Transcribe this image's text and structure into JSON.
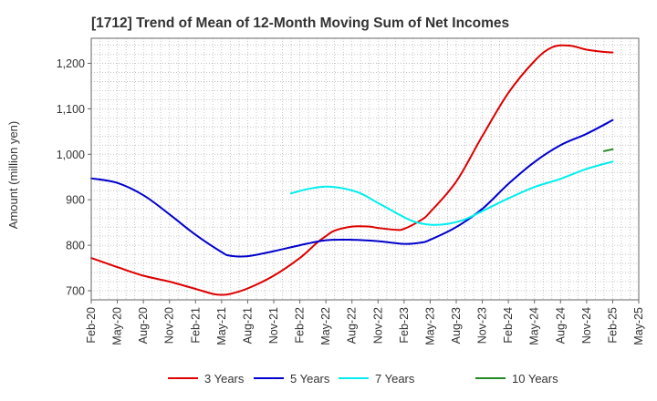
{
  "chart_data": {
    "type": "line",
    "title": "[1712]  Trend of Mean of 12-Month Moving Sum of Net Incomes",
    "ylabel": "Amount (million yen)",
    "xlabel": "",
    "ylim": [
      680,
      1255
    ],
    "yticks": [
      700,
      800,
      900,
      1000,
      1100,
      1200
    ],
    "ytick_labels": [
      "700",
      "800",
      "900",
      "1,000",
      "1,100",
      "1,200"
    ],
    "xlim": [
      "2020-02",
      "2025-05"
    ],
    "xtick_labels": [
      "Feb-20",
      "May-20",
      "Aug-20",
      "Nov-20",
      "Feb-21",
      "May-21",
      "Aug-21",
      "Nov-21",
      "Feb-22",
      "May-22",
      "Aug-22",
      "Nov-22",
      "Feb-23",
      "May-23",
      "Aug-23",
      "Nov-23",
      "Feb-24",
      "May-24",
      "Aug-24",
      "Nov-24",
      "Feb-25",
      "May-25"
    ],
    "grid": true,
    "legend_position": "bottom",
    "series": [
      {
        "name": "3 Years",
        "color": "#dd0000",
        "points": [
          [
            "2020-02",
            772
          ],
          [
            "2020-05",
            752
          ],
          [
            "2020-08",
            733
          ],
          [
            "2020-11",
            720
          ],
          [
            "2021-02",
            704
          ],
          [
            "2021-04",
            693
          ],
          [
            "2021-05",
            691
          ],
          [
            "2021-06",
            693
          ],
          [
            "2021-08",
            705
          ],
          [
            "2021-11",
            733
          ],
          [
            "2022-02",
            772
          ],
          [
            "2022-04",
            806
          ],
          [
            "2022-05",
            820
          ],
          [
            "2022-06",
            832
          ],
          [
            "2022-08",
            841
          ],
          [
            "2022-10",
            841
          ],
          [
            "2022-11",
            838
          ],
          [
            "2023-01",
            834
          ],
          [
            "2023-02",
            836
          ],
          [
            "2023-04",
            856
          ],
          [
            "2023-05",
            873
          ],
          [
            "2023-08",
            940
          ],
          [
            "2023-11",
            1040
          ],
          [
            "2024-02",
            1135
          ],
          [
            "2024-05",
            1205
          ],
          [
            "2024-07",
            1235
          ],
          [
            "2024-09",
            1239
          ],
          [
            "2024-11",
            1230
          ],
          [
            "2025-01",
            1225
          ],
          [
            "2025-02",
            1224
          ]
        ]
      },
      {
        "name": "5 Years",
        "color": "#0000cc",
        "points": [
          [
            "2020-02",
            947
          ],
          [
            "2020-05",
            937
          ],
          [
            "2020-08",
            910
          ],
          [
            "2020-11",
            868
          ],
          [
            "2021-02",
            823
          ],
          [
            "2021-05",
            785
          ],
          [
            "2021-06",
            777
          ],
          [
            "2021-08",
            776
          ],
          [
            "2021-11",
            787
          ],
          [
            "2022-02",
            800
          ],
          [
            "2022-05",
            811
          ],
          [
            "2022-08",
            812
          ],
          [
            "2022-11",
            809
          ],
          [
            "2023-02",
            803
          ],
          [
            "2023-04",
            806
          ],
          [
            "2023-05",
            812
          ],
          [
            "2023-08",
            840
          ],
          [
            "2023-11",
            880
          ],
          [
            "2024-02",
            935
          ],
          [
            "2024-05",
            983
          ],
          [
            "2024-08",
            1020
          ],
          [
            "2024-11",
            1045
          ],
          [
            "2025-02",
            1075
          ]
        ]
      },
      {
        "name": "7 Years",
        "color": "#00eeee",
        "points": [
          [
            "2022-01",
            914
          ],
          [
            "2022-03",
            924
          ],
          [
            "2022-05",
            929
          ],
          [
            "2022-07",
            925
          ],
          [
            "2022-09",
            914
          ],
          [
            "2022-11",
            893
          ],
          [
            "2023-01",
            872
          ],
          [
            "2023-03",
            853
          ],
          [
            "2023-05",
            845
          ],
          [
            "2023-07",
            847
          ],
          [
            "2023-09",
            857
          ],
          [
            "2023-11",
            875
          ],
          [
            "2024-02",
            903
          ],
          [
            "2024-05",
            928
          ],
          [
            "2024-08",
            946
          ],
          [
            "2024-11",
            968
          ],
          [
            "2025-02",
            984
          ]
        ]
      },
      {
        "name": "10 Years",
        "color": "#228822",
        "points": [
          [
            "2025-01",
            1007
          ],
          [
            "2025-02",
            1011
          ]
        ]
      }
    ]
  }
}
